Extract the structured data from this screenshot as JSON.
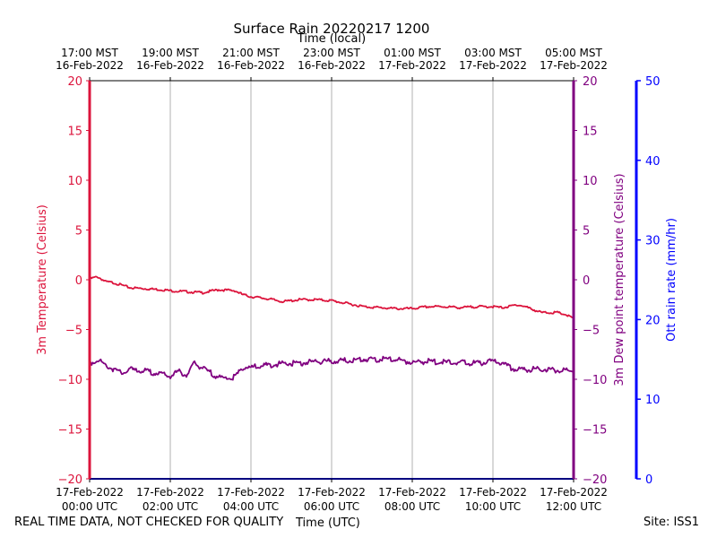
{
  "chart_data": {
    "type": "line",
    "title": "Surface Rain 20220217 1200",
    "top_axis_label": "Time (local)",
    "xlabel": "Time (UTC)",
    "ylabel_left": "3m Temperature (Celsius)",
    "ylabel_dew": "3m Dew point temperature (Celsius)",
    "ylabel_rain": "Ott rain rate (mm/hr)",
    "xlim_hours": [
      0,
      12
    ],
    "ylim_temp": [
      -20,
      20
    ],
    "ylim_rain": [
      0,
      50
    ],
    "temp_ticks": [
      20,
      15,
      10,
      5,
      0,
      -5,
      -10,
      -15,
      -20
    ],
    "temp_tick_labels": [
      "20",
      "15",
      "10",
      "5",
      "0",
      "−5",
      "−10",
      "−15",
      "−20"
    ],
    "rain_ticks": [
      50,
      40,
      30,
      20,
      10,
      0
    ],
    "rain_tick_labels": [
      "50",
      "40",
      "30",
      "20",
      "10",
      "0"
    ],
    "bottom_ticks": [
      {
        "hour": 0,
        "date": "17-Feb-2022",
        "time": "00:00 UTC"
      },
      {
        "hour": 2,
        "date": "17-Feb-2022",
        "time": "02:00 UTC"
      },
      {
        "hour": 4,
        "date": "17-Feb-2022",
        "time": "04:00 UTC"
      },
      {
        "hour": 6,
        "date": "17-Feb-2022",
        "time": "06:00 UTC"
      },
      {
        "hour": 8,
        "date": "17-Feb-2022",
        "time": "08:00 UTC"
      },
      {
        "hour": 10,
        "date": "17-Feb-2022",
        "time": "10:00 UTC"
      },
      {
        "hour": 12,
        "date": "17-Feb-2022",
        "time": "12:00 UTC"
      }
    ],
    "top_ticks": [
      {
        "hour": 0,
        "time": "17:00 MST",
        "date": "16-Feb-2022"
      },
      {
        "hour": 2,
        "time": "19:00 MST",
        "date": "16-Feb-2022"
      },
      {
        "hour": 4,
        "time": "21:00 MST",
        "date": "16-Feb-2022"
      },
      {
        "hour": 6,
        "time": "23:00 MST",
        "date": "16-Feb-2022"
      },
      {
        "hour": 8,
        "time": "01:00 MST",
        "date": "17-Feb-2022"
      },
      {
        "hour": 10,
        "time": "03:00 MST",
        "date": "17-Feb-2022"
      },
      {
        "hour": 12,
        "time": "05:00 MST",
        "date": "17-Feb-2022"
      }
    ],
    "series": [
      {
        "name": "3m Temperature",
        "color": "#dc143c",
        "x": [
          0,
          0.2,
          0.4,
          0.6,
          1.0,
          1.4,
          1.8,
          2.0,
          2.4,
          2.8,
          3.2,
          3.6,
          3.8,
          4.0,
          4.4,
          4.8,
          5.2,
          5.6,
          6.0,
          6.4,
          6.8,
          7.2,
          7.6,
          8.0,
          8.4,
          8.8,
          9.2,
          9.6,
          10.0,
          10.2,
          10.4,
          10.6,
          10.8,
          11.0,
          11.2,
          11.6,
          11.8,
          12.0
        ],
        "values": [
          0.1,
          0.3,
          -0.2,
          -0.3,
          -0.8,
          -0.9,
          -1.0,
          -1.1,
          -1.2,
          -1.3,
          -1.0,
          -1.1,
          -1.5,
          -1.7,
          -1.9,
          -2.2,
          -2.0,
          -2.0,
          -2.1,
          -2.4,
          -2.7,
          -2.8,
          -2.9,
          -2.9,
          -2.7,
          -2.7,
          -2.8,
          -2.7,
          -2.7,
          -2.8,
          -2.7,
          -2.5,
          -2.7,
          -3.0,
          -3.3,
          -3.3,
          -3.5,
          -3.9
        ]
      },
      {
        "name": "3m Dew point temperature",
        "color": "#800080",
        "x": [
          0,
          0.2,
          0.4,
          0.6,
          0.8,
          1.0,
          1.4,
          1.8,
          2.0,
          2.2,
          2.4,
          2.6,
          2.8,
          3.2,
          3.4,
          3.6,
          3.8,
          4.0,
          4.4,
          4.8,
          5.2,
          5.6,
          6.0,
          6.4,
          6.8,
          7.2,
          7.6,
          8.0,
          8.4,
          8.8,
          9.2,
          9.6,
          10.0,
          10.2,
          10.4,
          10.6,
          10.8,
          11.2,
          11.6,
          12.0
        ],
        "values": [
          -8.4,
          -8.0,
          -8.6,
          -9.0,
          -9.4,
          -9.0,
          -9.2,
          -9.5,
          -9.7,
          -9.2,
          -9.6,
          -8.4,
          -8.9,
          -9.8,
          -9.9,
          -9.8,
          -8.8,
          -8.8,
          -8.6,
          -8.4,
          -8.4,
          -8.2,
          -8.2,
          -8.1,
          -8.0,
          -8.0,
          -8.0,
          -8.3,
          -8.2,
          -8.3,
          -8.3,
          -8.4,
          -8.2,
          -8.3,
          -8.8,
          -9.0,
          -9.0,
          -9.0,
          -9.1,
          -9.2
        ]
      },
      {
        "name": "Ott rain rate",
        "color": "#0000ff",
        "x": [
          0,
          12
        ],
        "values": [
          0,
          0
        ]
      }
    ]
  },
  "footer": {
    "left_note": "REAL TIME DATA, NOT CHECKED FOR QUALITY",
    "xlabel": "Time (UTC)",
    "site": "Site: ISS1"
  }
}
